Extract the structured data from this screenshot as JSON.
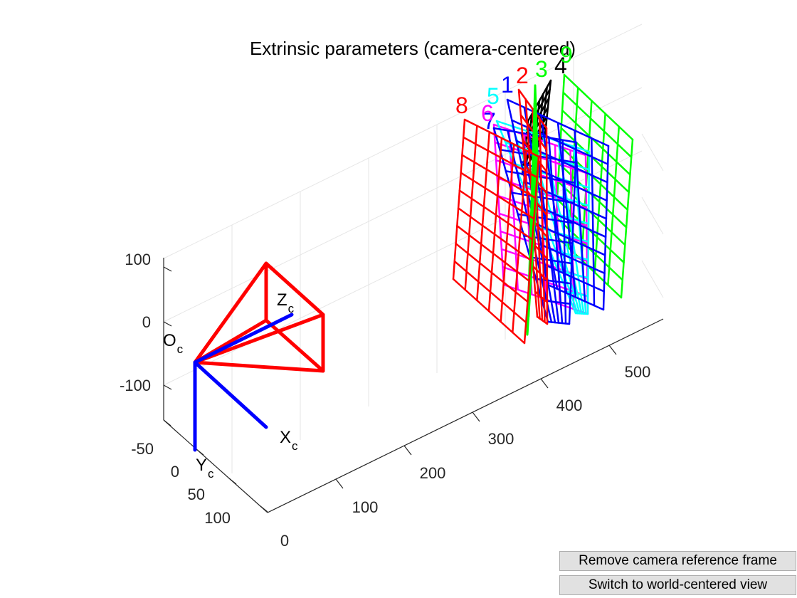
{
  "figure": {
    "title": "Extrinsic parameters (camera-centered)"
  },
  "axes": {
    "z_ticks": [
      "100",
      "0",
      "-100"
    ],
    "x_ticks": [
      "-50",
      "0",
      "50",
      "100"
    ],
    "depth_ticks": [
      "0",
      "100",
      "200",
      "300",
      "400",
      "500"
    ]
  },
  "camera_frame": {
    "origin_label": "O",
    "origin_sub": "c",
    "x_label": "X",
    "x_sub": "c",
    "y_label": "Y",
    "y_sub": "c",
    "z_label": "Z",
    "z_sub": "c"
  },
  "planes": [
    {
      "id": "8",
      "color": "#ff0000"
    },
    {
      "id": "7",
      "color": "#0000ff"
    },
    {
      "id": "6",
      "color": "#ff00ff"
    },
    {
      "id": "5",
      "color": "#00ffff"
    },
    {
      "id": "1",
      "color": "#0000ff"
    },
    {
      "id": "2",
      "color": "#ff0000"
    },
    {
      "id": "3",
      "color": "#00ff00"
    },
    {
      "id": "4",
      "color": "#000000"
    },
    {
      "id": "9",
      "color": "#00ff00"
    }
  ],
  "buttons": {
    "remove_label": "Remove camera reference frame",
    "switch_label": "Switch to world-centered view"
  }
}
